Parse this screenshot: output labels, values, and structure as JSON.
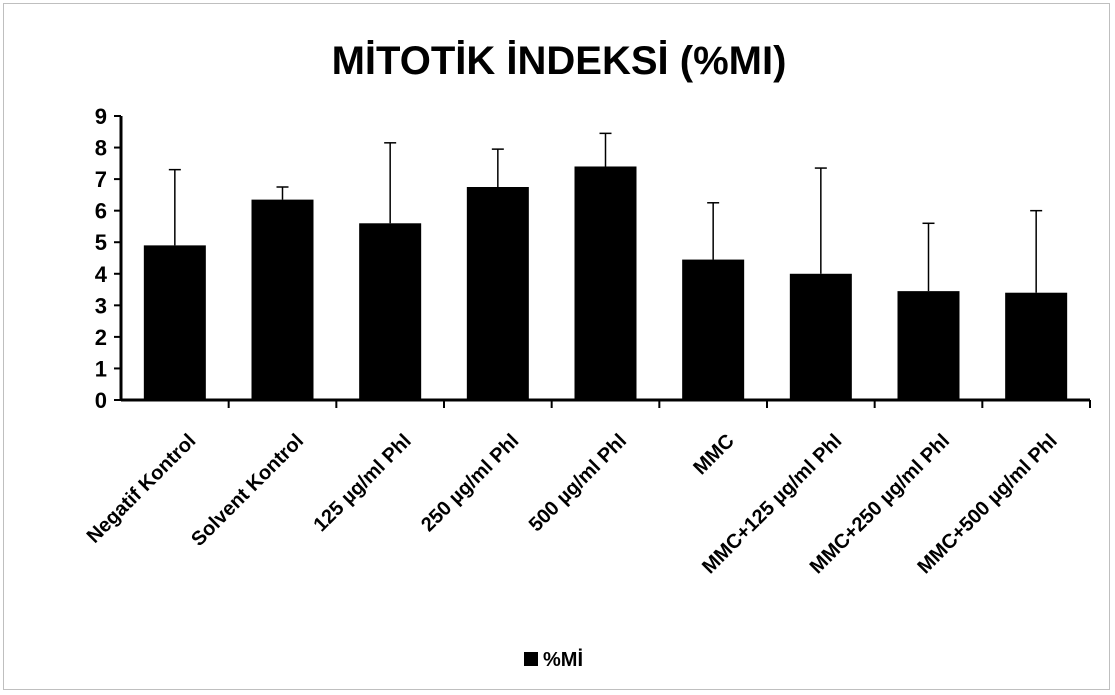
{
  "chart_data": {
    "type": "bar",
    "title": "MİTOTİK İNDEKSİ (%MI)",
    "categories": [
      "Negatif Kontrol",
      "Solvent Kontrol",
      "125 µg/ml Phl",
      "250 µg/ml Phl",
      "500 µg/ml Phl",
      "MMC",
      "MMC+125 µg/ml Phl",
      "MMC+250 µg/ml Phl",
      "MMC+500 µg/ml Phl"
    ],
    "series": [
      {
        "name": "%Mİ",
        "values": [
          4.9,
          6.35,
          5.6,
          6.75,
          7.4,
          4.45,
          4.0,
          3.45,
          3.4
        ],
        "error": [
          2.4,
          0.4,
          2.55,
          1.2,
          1.05,
          1.8,
          3.35,
          2.15,
          2.6
        ],
        "color": "#000000"
      }
    ],
    "yticks": [
      0,
      1,
      2,
      3,
      4,
      5,
      6,
      7,
      8,
      9
    ],
    "ylim": [
      0,
      9
    ],
    "grid": false,
    "legend": "bottom-center",
    "xlabel": "",
    "ylabel": ""
  }
}
